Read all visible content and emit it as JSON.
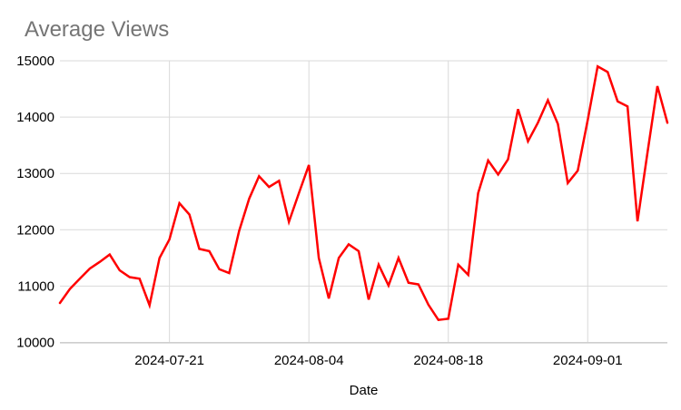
{
  "chart": {
    "title": "Average Views",
    "xlabel": "Date"
  },
  "style": {
    "line_color": "#ff0000",
    "title_color": "#757575",
    "grid_color": "#d9d9d9",
    "axis_color": "#c2c2c2",
    "label_color": "#000000",
    "background": "#ffffff"
  },
  "chart_data": {
    "type": "line",
    "title": "Average Views",
    "xlabel": "Date",
    "ylabel": "",
    "grid": true,
    "legend": "none",
    "ylim": [
      10000,
      15000
    ],
    "yticks": [
      10000,
      11000,
      12000,
      13000,
      14000,
      15000
    ],
    "xticks": [
      "2024-07-21",
      "2024-08-04",
      "2024-08-18",
      "2024-09-01"
    ],
    "x": [
      "2024-07-10",
      "2024-07-11",
      "2024-07-12",
      "2024-07-13",
      "2024-07-14",
      "2024-07-15",
      "2024-07-16",
      "2024-07-17",
      "2024-07-18",
      "2024-07-19",
      "2024-07-20",
      "2024-07-21",
      "2024-07-22",
      "2024-07-23",
      "2024-07-24",
      "2024-07-25",
      "2024-07-26",
      "2024-07-27",
      "2024-07-28",
      "2024-07-29",
      "2024-07-30",
      "2024-07-31",
      "2024-08-01",
      "2024-08-02",
      "2024-08-03",
      "2024-08-04",
      "2024-08-05",
      "2024-08-06",
      "2024-08-07",
      "2024-08-08",
      "2024-08-09",
      "2024-08-10",
      "2024-08-11",
      "2024-08-12",
      "2024-08-13",
      "2024-08-14",
      "2024-08-15",
      "2024-08-16",
      "2024-08-17",
      "2024-08-18",
      "2024-08-19",
      "2024-08-20",
      "2024-08-21",
      "2024-08-22",
      "2024-08-23",
      "2024-08-24",
      "2024-08-25",
      "2024-08-26",
      "2024-08-27",
      "2024-08-28",
      "2024-08-29",
      "2024-08-30",
      "2024-08-31",
      "2024-09-01",
      "2024-09-02",
      "2024-09-03",
      "2024-09-04",
      "2024-09-05",
      "2024-09-06",
      "2024-09-07",
      "2024-09-08",
      "2024-09-09"
    ],
    "series": [
      {
        "name": "Average Views",
        "color": "#ff0000",
        "values": [
          10700,
          10950,
          11130,
          11310,
          11430,
          11560,
          11280,
          11160,
          11130,
          10660,
          11500,
          11830,
          12470,
          12270,
          11660,
          11620,
          11300,
          11230,
          11980,
          12550,
          12950,
          12760,
          12870,
          12140,
          12650,
          13150,
          11500,
          10780,
          11500,
          11740,
          11620,
          10760,
          11380,
          11010,
          11500,
          11060,
          11030,
          10670,
          10400,
          10420,
          11380,
          11200,
          12650,
          13230,
          12980,
          13250,
          14140,
          13570,
          13900,
          14300,
          13880,
          12830,
          13050,
          13950,
          14900,
          14800,
          14280,
          14190,
          12150,
          13370,
          14550,
          13900
        ]
      }
    ]
  }
}
